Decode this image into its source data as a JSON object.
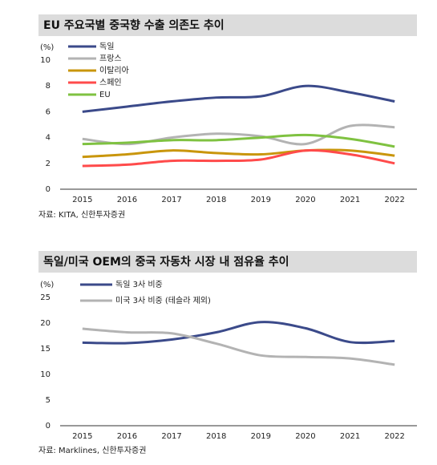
{
  "chart_data": [
    {
      "type": "line",
      "title": "EU 주요국별 중국향 수출 의존도 추이",
      "y_label": "(%)",
      "categories": [
        "2015",
        "2016",
        "2017",
        "2018",
        "2019",
        "2020",
        "2021",
        "2022"
      ],
      "series": [
        {
          "name": "독일",
          "color": "#3b4a8a",
          "values": [
            6.0,
            6.4,
            6.8,
            7.1,
            7.2,
            8.0,
            7.5,
            6.8
          ]
        },
        {
          "name": "프랑스",
          "color": "#b3b3b3",
          "values": [
            3.9,
            3.5,
            4.0,
            4.3,
            4.1,
            3.5,
            4.9,
            4.8
          ]
        },
        {
          "name": "이탈리아",
          "color": "#c9960c",
          "values": [
            2.5,
            2.7,
            3.0,
            2.8,
            2.7,
            3.0,
            3.0,
            2.6
          ]
        },
        {
          "name": "스페인",
          "color": "#ff4b4b",
          "values": [
            1.8,
            1.9,
            2.2,
            2.2,
            2.3,
            3.0,
            2.7,
            2.0
          ]
        },
        {
          "name": "EU",
          "color": "#7fc241",
          "values": [
            3.5,
            3.6,
            3.8,
            3.8,
            4.0,
            4.2,
            3.9,
            3.3
          ]
        }
      ],
      "ylim": [
        0,
        10
      ],
      "yticks": [
        0,
        2,
        4,
        6,
        8,
        10
      ],
      "grid": false,
      "source": "자료: KITA, 신한투자증권"
    },
    {
      "type": "line",
      "title": "독일/미국 OEM의 중국 자동차 시장 내 점유율 추이",
      "y_label": "(%)",
      "categories": [
        "2015",
        "2016",
        "2017",
        "2018",
        "2019",
        "2020",
        "2021",
        "2022"
      ],
      "series": [
        {
          "name": "독일 3사 비중",
          "color": "#3b4a8a",
          "values": [
            16.2,
            16.1,
            16.8,
            18.2,
            20.2,
            19.0,
            16.3,
            16.5
          ]
        },
        {
          "name": "미국 3사 비중 (테슬라 제외)",
          "color": "#b3b3b3",
          "values": [
            18.9,
            18.2,
            18.0,
            16.0,
            13.7,
            13.4,
            13.1,
            11.9
          ]
        }
      ],
      "ylim": [
        0,
        25
      ],
      "yticks": [
        0,
        5,
        10,
        15,
        20,
        25
      ],
      "grid": false,
      "source": "자료: Marklines, 신한투자증권"
    }
  ]
}
